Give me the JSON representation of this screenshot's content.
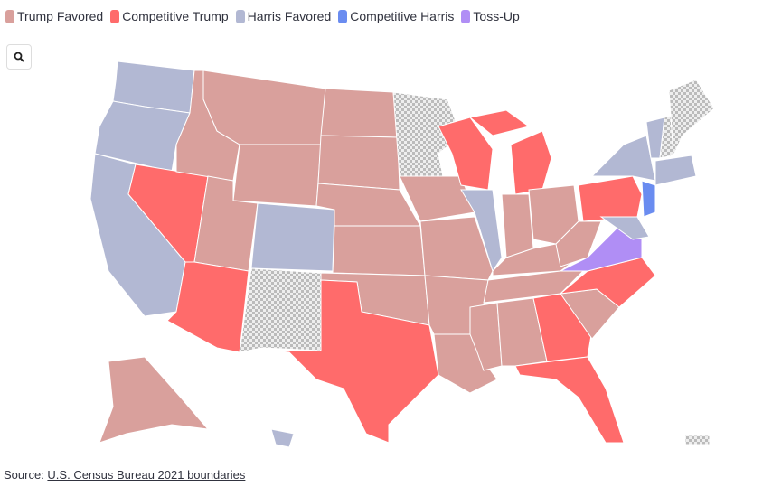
{
  "legend": [
    {
      "label": "Trump Favored",
      "key": "tf"
    },
    {
      "label": "Competitive Trump",
      "key": "ct"
    },
    {
      "label": "Harris Favored",
      "key": "hf"
    },
    {
      "label": "Competitive Harris",
      "key": "ch"
    },
    {
      "label": "Toss-Up",
      "key": "tu"
    }
  ],
  "colors": {
    "tf": "#d9a09c",
    "ct": "#ff6b6b",
    "hf": "#b2b8d3",
    "ch": "#6a8cf0",
    "tu": "#b08ef5",
    "nodata": "checkered"
  },
  "zoom_icon": "search-icon",
  "states": {
    "WA": "hf",
    "OR": "hf",
    "CA": "hf",
    "NV": "ct",
    "ID": "tf",
    "MT": "tf",
    "WY": "tf",
    "UT": "tf",
    "AZ": "ct",
    "CO": "hf",
    "NM": "nodata",
    "ND": "tf",
    "SD": "tf",
    "NE": "tf",
    "KS": "tf",
    "OK": "tf",
    "TX": "ct",
    "MN": "nodata",
    "IA": "tf",
    "MO": "tf",
    "AR": "tf",
    "LA": "tf",
    "WI": "ct",
    "IL": "hf",
    "MI": "ct",
    "MI_UP": "ct",
    "IN": "tf",
    "OH": "tf",
    "KY": "tf",
    "TN": "tf",
    "MS": "tf",
    "AL": "tf",
    "GA": "ct",
    "FL": "ct",
    "SC": "tf",
    "NC": "ct",
    "VA": "tu",
    "WV": "tf",
    "PA": "ct",
    "NY": "hf",
    "NJ": "ch",
    "MD": "hf",
    "VT": "hf",
    "NH": "nodata",
    "ME": "nodata",
    "MA": "hf",
    "AK": "tf",
    "HI": "hf",
    "DC": "nodata"
  },
  "source": {
    "prefix": "Source: ",
    "link": "U.S. Census Bureau 2021 boundaries"
  }
}
